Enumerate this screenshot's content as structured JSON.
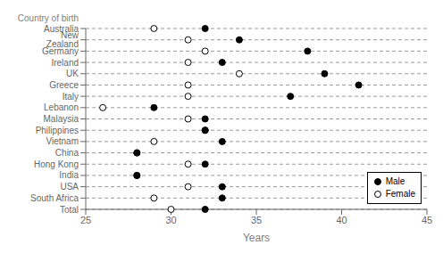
{
  "chart_data": {
    "type": "scatter",
    "orientation": "horizontal",
    "xlabel": "Years",
    "ylabel": "Country of birth",
    "categories": [
      "Australia",
      "New Zealand",
      "Germany",
      "Ireland",
      "UK",
      "Greece",
      "Italy",
      "Lebanon",
      "Malaysia",
      "Philippines",
      "Vietnam",
      "China",
      "Hong Kong",
      "India",
      "USA",
      "South Africa",
      "Total"
    ],
    "series": [
      {
        "name": "Male",
        "color": "#000000",
        "values": [
          32,
          34,
          38,
          33,
          39,
          41,
          37,
          29,
          32,
          32,
          33,
          28,
          32,
          28,
          33,
          33,
          32
        ]
      },
      {
        "name": "Female",
        "color": "#ffffff",
        "values": [
          29,
          31,
          32,
          31,
          34,
          31,
          31,
          26,
          31,
          32,
          29,
          28,
          31,
          28,
          31,
          29,
          30
        ]
      }
    ],
    "xlim": [
      25,
      45
    ],
    "xticks": [
      25,
      30,
      35,
      40,
      45
    ],
    "grid": true,
    "legend": "lower right"
  }
}
